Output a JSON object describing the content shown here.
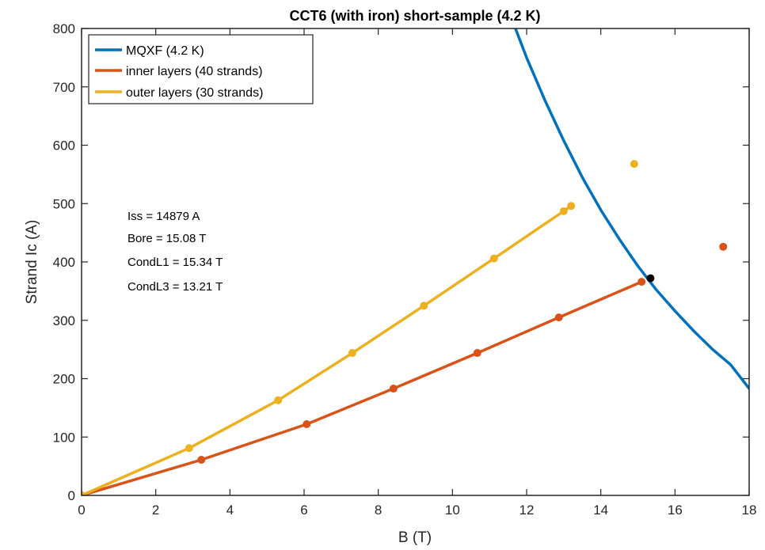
{
  "chart_data": {
    "type": "line",
    "title": "CCT6 (with iron) short-sample (4.2 K)",
    "xlabel": "B (T)",
    "ylabel": "Strand Ic (A)",
    "xlim": [
      0,
      18
    ],
    "ylim": [
      0,
      800
    ],
    "xticks": [
      "0",
      "2",
      "4",
      "6",
      "8",
      "10",
      "12",
      "14",
      "16",
      "18"
    ],
    "yticks": [
      "0",
      "100",
      "200",
      "300",
      "400",
      "500",
      "600",
      "700",
      "800"
    ],
    "grid": false,
    "legend_position": "top-left",
    "series": [
      {
        "name": "MQXF (4.2 K)",
        "color": "#0072BD",
        "style": "line",
        "x": [
          11.7,
          12.0,
          12.5,
          13.0,
          13.5,
          14.0,
          14.5,
          15.0,
          15.5,
          16.0,
          16.5,
          17.0,
          17.5,
          18.0
        ],
        "y": [
          800,
          750,
          676,
          608,
          545,
          489,
          439,
          393,
          352,
          316,
          282,
          251,
          224,
          183
        ]
      },
      {
        "name": "inner layers (40 strands)",
        "color": "#D95319",
        "style": "line+markers",
        "x": [
          0,
          3.23,
          6.07,
          8.41,
          10.67,
          12.87,
          15.1
        ],
        "y": [
          0,
          61,
          122,
          183,
          244,
          305,
          366
        ]
      },
      {
        "name": "outer layers (30 strands)",
        "color": "#EDB120",
        "style": "line+markers",
        "x": [
          0,
          2.9,
          5.3,
          7.3,
          9.23,
          11.12,
          13.0,
          13.2
        ],
        "y": [
          0,
          81,
          163,
          244,
          325,
          406,
          487,
          496
        ]
      }
    ],
    "extra_points": [
      {
        "x": 14.9,
        "y": 568,
        "color": "#EDB120"
      },
      {
        "x": 17.3,
        "y": 426,
        "color": "#D95319"
      },
      {
        "x": 15.34,
        "y": 372,
        "color": "#000000"
      }
    ],
    "annotations": [
      "Iss = 14879 A",
      "Bore = 15.08 T",
      "CondL1 = 15.34 T",
      "CondL3 = 13.21 T"
    ]
  }
}
